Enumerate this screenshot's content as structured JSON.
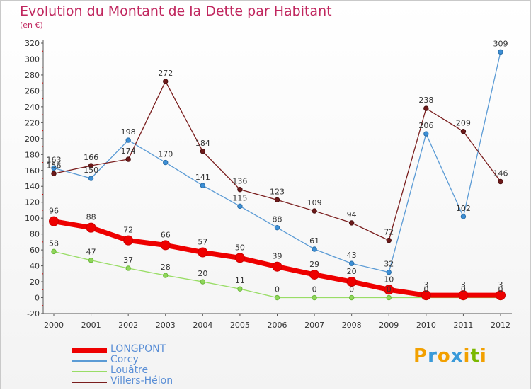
{
  "title": "Evolution du Montant de la Dette par Habitant",
  "unit_label": "(en €)",
  "logo": {
    "letters": [
      "P",
      "r",
      "o",
      "x",
      "i",
      "t",
      "i"
    ],
    "colors": [
      "#f2a000",
      "#3a9ad9",
      "#f2a000",
      "#3a9ad9",
      "#f2a000",
      "#7ab800",
      "#f2a000"
    ]
  },
  "chart_data": {
    "type": "line",
    "x": [
      "2000",
      "2001",
      "2002",
      "2003",
      "2004",
      "2005",
      "2006",
      "2007",
      "2008",
      "2009",
      "2010",
      "2011",
      "2012"
    ],
    "ylim": [
      -20,
      320
    ],
    "yticks": [
      -20,
      0,
      20,
      40,
      60,
      80,
      100,
      120,
      140,
      160,
      180,
      200,
      220,
      240,
      260,
      280,
      300,
      320
    ],
    "grid": false,
    "legend_position": "bottom-left",
    "series": [
      {
        "name": "LONGPONT",
        "color": "#ee0000",
        "values": [
          96,
          88,
          72,
          66,
          57,
          50,
          39,
          29,
          20,
          10,
          3,
          3,
          3
        ],
        "labels": [
          "96",
          "88",
          "72",
          "66",
          "57",
          "50",
          "39",
          "29",
          "20",
          "10",
          "3",
          "3",
          "3"
        ]
      },
      {
        "name": "Corcy",
        "color": "#5b9bd5",
        "values": [
          163,
          150,
          198,
          170,
          141,
          115,
          88,
          61,
          43,
          32,
          206,
          102,
          309
        ],
        "labels": [
          "163",
          "150",
          "198",
          "170",
          "141",
          "115",
          "88",
          "61",
          "43",
          "32",
          "206",
          "102",
          "309"
        ]
      },
      {
        "name": "Louâtre",
        "color": "#99dd66",
        "values": [
          58,
          47,
          37,
          28,
          20,
          11,
          0,
          0,
          0,
          0,
          0,
          0,
          0
        ],
        "labels": [
          "58",
          "47",
          "37",
          "28",
          "20",
          "11",
          "0",
          "0",
          "0",
          "0",
          "0",
          "0",
          "0"
        ]
      },
      {
        "name": "Villers-Hélon",
        "color": "#7a1e1e",
        "values": [
          156,
          166,
          174,
          272,
          184,
          136,
          123,
          109,
          94,
          72,
          238,
          209,
          146
        ],
        "labels": [
          "156",
          "166",
          "174",
          "272",
          "184",
          "136",
          "123",
          "109",
          "94",
          "72",
          "238",
          "209",
          "146"
        ]
      }
    ]
  }
}
